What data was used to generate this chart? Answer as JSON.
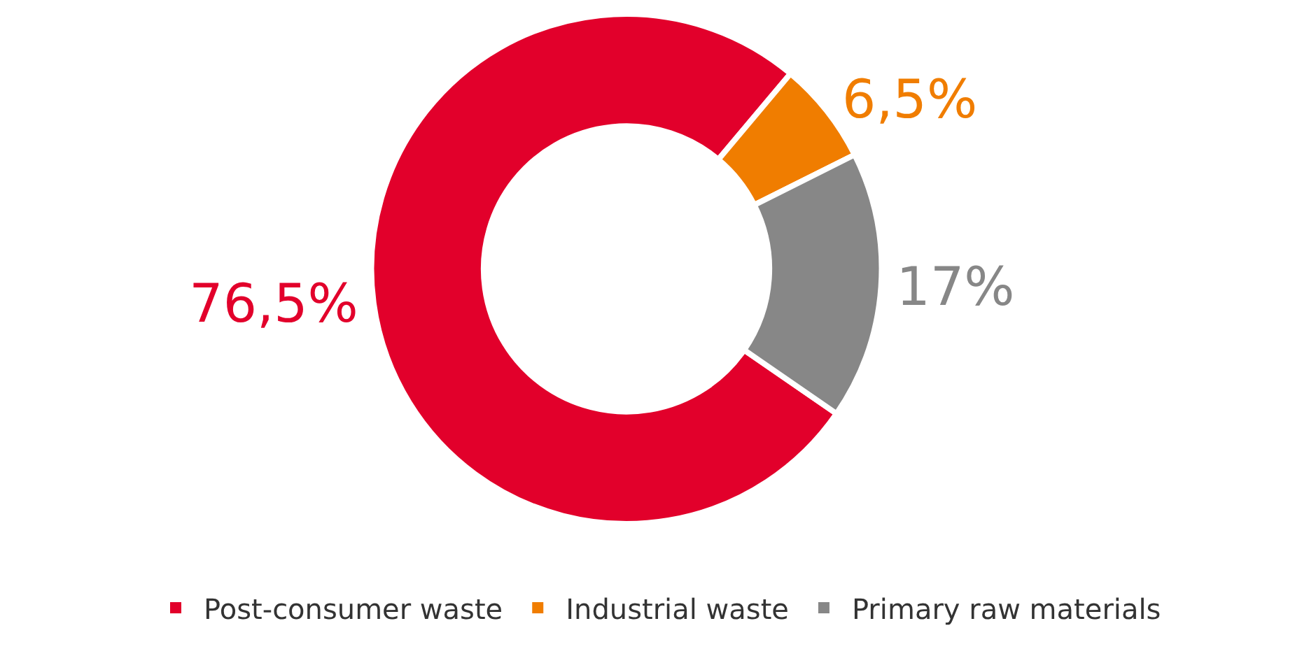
{
  "chart_data": {
    "type": "donut",
    "categories": [
      "Post-consumer waste",
      "Industrial waste",
      "Primary raw materials"
    ],
    "values": [
      76.5,
      6.5,
      17
    ],
    "colors": [
      "#e2002b",
      "#f07d00",
      "#878787"
    ],
    "value_labels": [
      "76,5%",
      "6,5%",
      "17%"
    ],
    "legend": "bottom"
  }
}
